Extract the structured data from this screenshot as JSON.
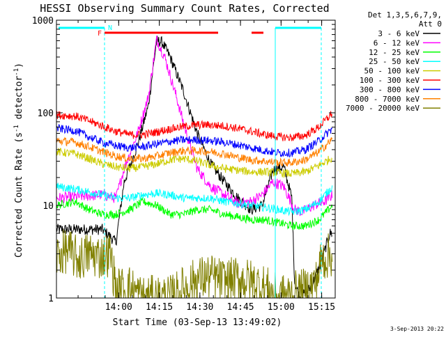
{
  "chart_data": {
    "type": "line",
    "title": "HESSI Observing Summary Count Rates, Corrected",
    "xlabel": "Start Time (03-Sep-13 13:49:02)",
    "ylabel_main": "Corrected Count Rate (s",
    "ylabel_sup1": "-1",
    "ylabel_mid": " detector",
    "ylabel_sup2": "-1",
    "ylabel_end": ")",
    "yscale": "log",
    "ylim": [
      1,
      1000
    ],
    "xlim_minutes": [
      -12,
      91
    ],
    "xticks": [
      {
        "label": "14:00",
        "minute": 11
      },
      {
        "label": "14:15",
        "minute": 26
      },
      {
        "label": "14:30",
        "minute": 41
      },
      {
        "label": "14:45",
        "minute": 56
      },
      {
        "label": "15:00",
        "minute": 71
      },
      {
        "label": "15:15",
        "minute": 86
      }
    ],
    "yticks": [
      {
        "label": "1",
        "value": 1
      },
      {
        "label": "10",
        "value": 10
      },
      {
        "label": "100",
        "value": 100
      },
      {
        "label": "1000",
        "value": 1000
      }
    ],
    "legend_title_line1": "Det 1,3,5,6,7,9,",
    "legend_title_line2": "Att 0",
    "legend_position": "right",
    "date_stamp": "3-Sep-2013 20:22",
    "series": [
      {
        "name": "3 - 6 keV",
        "color": "#000000",
        "points": [
          [
            -12,
            5.5
          ],
          [
            5,
            5.5
          ],
          [
            10,
            4
          ],
          [
            13,
            18
          ],
          [
            18,
            45
          ],
          [
            22,
            120
          ],
          [
            25,
            600
          ],
          [
            27,
            580
          ],
          [
            30,
            400
          ],
          [
            35,
            170
          ],
          [
            40,
            60
          ],
          [
            45,
            28
          ],
          [
            50,
            18
          ],
          [
            55,
            12
          ],
          [
            60,
            9
          ],
          [
            64,
            10
          ],
          [
            68,
            24
          ],
          [
            72,
            26
          ],
          [
            75,
            12
          ],
          [
            76,
            1.5
          ],
          [
            78,
            1
          ],
          [
            82,
            1.3
          ],
          [
            86,
            2.5
          ],
          [
            89,
            5
          ],
          [
            90,
            5
          ]
        ]
      },
      {
        "name": "6 - 12 keV",
        "color": "#ff00ff",
        "points": [
          [
            -12,
            12
          ],
          [
            5,
            13
          ],
          [
            10,
            12
          ],
          [
            13,
            25
          ],
          [
            18,
            60
          ],
          [
            22,
            150
          ],
          [
            25,
            620
          ],
          [
            28,
            400
          ],
          [
            32,
            160
          ],
          [
            36,
            60
          ],
          [
            40,
            25
          ],
          [
            45,
            16
          ],
          [
            50,
            13
          ],
          [
            55,
            10.5
          ],
          [
            60,
            11
          ],
          [
            64,
            13
          ],
          [
            68,
            18
          ],
          [
            72,
            16
          ],
          [
            76,
            9
          ],
          [
            79,
            8.5
          ],
          [
            83,
            10
          ],
          [
            87,
            11
          ],
          [
            90,
            13
          ]
        ]
      },
      {
        "name": "12 - 25 keV",
        "color": "#00ff00",
        "points": [
          [
            -12,
            10
          ],
          [
            -5,
            11
          ],
          [
            0,
            9
          ],
          [
            5,
            8
          ],
          [
            10,
            8
          ],
          [
            15,
            9
          ],
          [
            20,
            11
          ],
          [
            25,
            10
          ],
          [
            30,
            8
          ],
          [
            35,
            8
          ],
          [
            40,
            9
          ],
          [
            45,
            9
          ],
          [
            50,
            8
          ],
          [
            55,
            7.5
          ],
          [
            60,
            7
          ],
          [
            65,
            7
          ],
          [
            70,
            6.5
          ],
          [
            75,
            6
          ],
          [
            80,
            6
          ],
          [
            85,
            7
          ],
          [
            90,
            10
          ]
        ]
      },
      {
        "name": "25 - 50 keV",
        "color": "#00ffff",
        "points": [
          [
            -12,
            16
          ],
          [
            -5,
            15
          ],
          [
            0,
            14
          ],
          [
            5,
            13
          ],
          [
            10,
            12
          ],
          [
            15,
            12
          ],
          [
            20,
            13
          ],
          [
            25,
            13.5
          ],
          [
            30,
            13
          ],
          [
            35,
            12
          ],
          [
            40,
            12
          ],
          [
            45,
            12
          ],
          [
            50,
            11
          ],
          [
            55,
            10.5
          ],
          [
            60,
            10
          ],
          [
            65,
            9.5
          ],
          [
            70,
            9
          ],
          [
            75,
            8.5
          ],
          [
            80,
            9
          ],
          [
            85,
            11
          ],
          [
            90,
            16
          ]
        ]
      },
      {
        "name": "50 - 100 keV",
        "color": "#cccc00",
        "points": [
          [
            -12,
            38
          ],
          [
            -5,
            36
          ],
          [
            0,
            32
          ],
          [
            5,
            28
          ],
          [
            10,
            26
          ],
          [
            15,
            25
          ],
          [
            20,
            26
          ],
          [
            25,
            28
          ],
          [
            30,
            31
          ],
          [
            35,
            32
          ],
          [
            40,
            30
          ],
          [
            45,
            27
          ],
          [
            50,
            25
          ],
          [
            55,
            24
          ],
          [
            60,
            23
          ],
          [
            65,
            23
          ],
          [
            70,
            22.5
          ],
          [
            75,
            22
          ],
          [
            80,
            23
          ],
          [
            85,
            27
          ],
          [
            90,
            33
          ]
        ]
      },
      {
        "name": "100 - 300 keV",
        "color": "#ff0000",
        "points": [
          [
            -12,
            95
          ],
          [
            -5,
            92
          ],
          [
            0,
            82
          ],
          [
            5,
            72
          ],
          [
            10,
            63
          ],
          [
            15,
            58
          ],
          [
            20,
            58
          ],
          [
            25,
            62
          ],
          [
            30,
            67
          ],
          [
            35,
            71
          ],
          [
            40,
            74
          ],
          [
            45,
            74
          ],
          [
            50,
            72
          ],
          [
            55,
            68
          ],
          [
            60,
            63
          ],
          [
            65,
            58
          ],
          [
            70,
            55
          ],
          [
            75,
            54
          ],
          [
            80,
            57
          ],
          [
            85,
            70
          ],
          [
            90,
            100
          ]
        ]
      },
      {
        "name": "300 - 800 keV",
        "color": "#0000ff",
        "points": [
          [
            -12,
            68
          ],
          [
            -5,
            64
          ],
          [
            0,
            55
          ],
          [
            5,
            48
          ],
          [
            10,
            44
          ],
          [
            15,
            42
          ],
          [
            20,
            43
          ],
          [
            25,
            46
          ],
          [
            30,
            49
          ],
          [
            35,
            51
          ],
          [
            40,
            51
          ],
          [
            45,
            50
          ],
          [
            50,
            48
          ],
          [
            55,
            45
          ],
          [
            60,
            42
          ],
          [
            65,
            39
          ],
          [
            70,
            37
          ],
          [
            75,
            37
          ],
          [
            80,
            40
          ],
          [
            85,
            50
          ],
          [
            90,
            68
          ]
        ]
      },
      {
        "name": "800 - 7000 keV",
        "color": "#ff8000",
        "points": [
          [
            -12,
            50
          ],
          [
            -5,
            48
          ],
          [
            0,
            43
          ],
          [
            5,
            38
          ],
          [
            10,
            34
          ],
          [
            15,
            32
          ],
          [
            20,
            32
          ],
          [
            25,
            34
          ],
          [
            30,
            37
          ],
          [
            35,
            39
          ],
          [
            40,
            39
          ],
          [
            45,
            38
          ],
          [
            50,
            36
          ],
          [
            55,
            33
          ],
          [
            60,
            31
          ],
          [
            65,
            30
          ],
          [
            70,
            29
          ],
          [
            75,
            29
          ],
          [
            80,
            31
          ],
          [
            85,
            38
          ],
          [
            90,
            52
          ]
        ]
      },
      {
        "name": "7000 - 20000 keV",
        "color": "#808000",
        "points": [
          [
            -12,
            2.8
          ],
          [
            -8,
            3.3
          ],
          [
            -4,
            2.6
          ],
          [
            0,
            3
          ],
          [
            4,
            2.8
          ],
          [
            8,
            3
          ],
          [
            10,
            1.2
          ],
          [
            15,
            1.3
          ],
          [
            20,
            1
          ],
          [
            30,
            1
          ],
          [
            40,
            1.6
          ],
          [
            45,
            1.7
          ],
          [
            50,
            1.5
          ],
          [
            55,
            1.6
          ],
          [
            60,
            1.5
          ],
          [
            65,
            1.3
          ],
          [
            70,
            1
          ],
          [
            80,
            1.2
          ],
          [
            84,
            1.5
          ],
          [
            86,
            2.6
          ],
          [
            90,
            3
          ]
        ]
      }
    ],
    "markers": [
      {
        "label": "F",
        "color": "#ff0000"
      },
      {
        "label": "N",
        "color": "#00ffff"
      }
    ]
  }
}
